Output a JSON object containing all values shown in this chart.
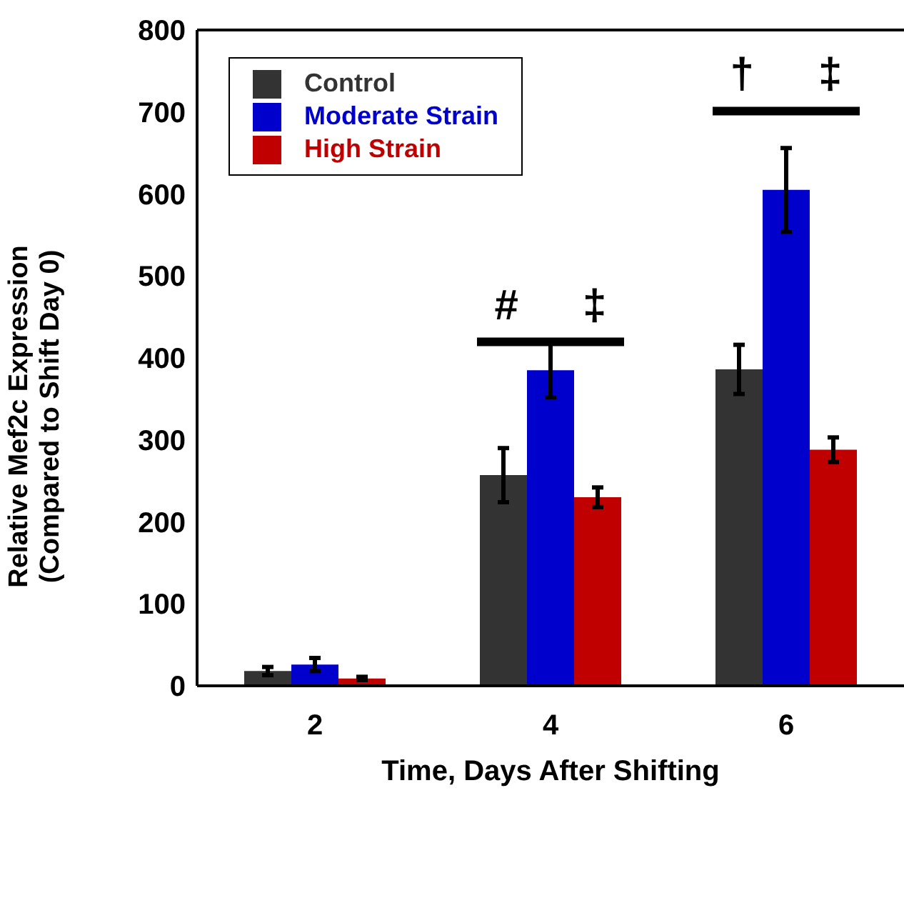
{
  "chart_data": {
    "type": "bar",
    "xlabel": "Time, Days After Shifting",
    "ylabel": "Relative Mef2c Expression\n(Compared to Shift Day 0)",
    "categories": [
      "2",
      "4",
      "6"
    ],
    "series": [
      {
        "name": "Control",
        "color": "#333333",
        "values": [
          18,
          257,
          386
        ],
        "errors": [
          5,
          33,
          30
        ]
      },
      {
        "name": "Moderate Strain",
        "color": "#0000cc",
        "values": [
          26,
          385,
          605
        ],
        "errors": [
          8,
          33,
          51
        ]
      },
      {
        "name": "High Strain",
        "color": "#c00000",
        "values": [
          9,
          230,
          288
        ],
        "errors": [
          2,
          12,
          15
        ]
      }
    ],
    "ylim": [
      0,
      800
    ],
    "yticks": [
      0,
      100,
      200,
      300,
      400,
      500,
      600,
      700,
      800
    ],
    "grid": false,
    "legend": "top left",
    "annotations": [
      "#",
      "‡",
      "†",
      "‡"
    ]
  }
}
